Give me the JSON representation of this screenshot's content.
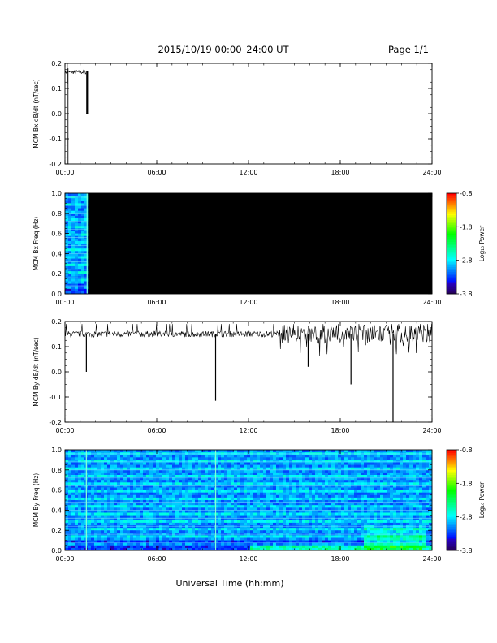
{
  "header": {
    "title": "2015/10/19   00:00–24:00 UT",
    "page": "Page 1/1"
  },
  "footer": {
    "xlabel": "Universal Time (hh:mm)"
  },
  "colorbar": {
    "label": "Log₁₀ Power",
    "tick_labels": [
      "-0.8",
      "-1.8",
      "-2.8",
      "-3.8"
    ],
    "range": [
      -3.8,
      -0.8
    ]
  },
  "chart_data": [
    {
      "type": "line",
      "ylabel": "MCM Bx dB/dt (nT/sec)",
      "ylim": [
        -0.2,
        0.2
      ],
      "yticks": [
        "0.2",
        "0.1",
        "0.0",
        "-0.1",
        "-0.2"
      ],
      "xticks": [
        "00:00",
        "06:00",
        "12:00",
        "18:00",
        "24:00"
      ],
      "xlim_hours": [
        0,
        24
      ],
      "series": [
        {
          "segments": [
            {
              "t_start": 0.0,
              "t_end": 1.4,
              "level": 0.165,
              "band": 0.015
            }
          ],
          "spikes": [
            {
              "t": 0.15,
              "min": 0.12,
              "max": 0.2
            },
            {
              "t": 0.2,
              "min": -0.2,
              "max": 0.18
            },
            {
              "t": 1.45,
              "min": 0.0,
              "max": 0.17
            }
          ]
        }
      ]
    },
    {
      "type": "heatmap",
      "ylabel": "MCM Bx Freq (Hz)",
      "ylim": [
        0.0,
        1.0
      ],
      "yticks": [
        "1.0",
        "0.8",
        "0.6",
        "0.4",
        "0.2",
        "0.0"
      ],
      "xticks": [
        "00:00",
        "06:00",
        "12:00",
        "18:00",
        "24:00"
      ],
      "xlim_hours": [
        0,
        24
      ],
      "data_hours": [
        0,
        1.45
      ]
    },
    {
      "type": "line",
      "ylabel": "MCM By dB/dt (nT/sec)",
      "ylim": [
        -0.2,
        0.2
      ],
      "yticks": [
        "0.2",
        "0.1",
        "0.0",
        "-0.1",
        "-0.2"
      ],
      "xticks": [
        "00:00",
        "06:00",
        "12:00",
        "18:00",
        "24:00"
      ],
      "xlim_hours": [
        0,
        24
      ],
      "series": [
        {
          "baseline": 0.15,
          "spikes": [
            {
              "t": 1.4,
              "min": 0.0
            },
            {
              "t": 9.85,
              "min": -0.115
            },
            {
              "t": 15.9,
              "min": 0.02
            },
            {
              "t": 18.7,
              "min": -0.05
            },
            {
              "t": 21.45,
              "min": -0.2
            }
          ]
        }
      ]
    },
    {
      "type": "heatmap",
      "ylabel": "MCM By Freq (Hz)",
      "ylim": [
        0.0,
        1.0
      ],
      "yticks": [
        "1.0",
        "0.8",
        "0.6",
        "0.4",
        "0.2",
        "0.0"
      ],
      "xticks": [
        "00:00",
        "06:00",
        "12:00",
        "18:00",
        "24:00"
      ],
      "xlim_hours": [
        0,
        24
      ],
      "data_hours": [
        0,
        24
      ],
      "vertical_lines_hours": [
        1.4,
        9.85
      ]
    }
  ]
}
